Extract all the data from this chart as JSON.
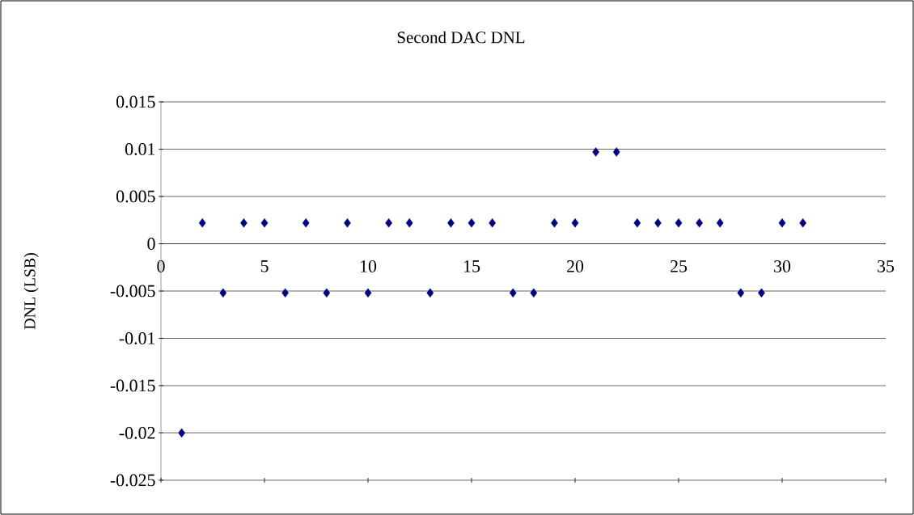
{
  "chart_data": {
    "type": "scatter",
    "title": "Second DAC DNL",
    "ylabel": "DNL (LSB)",
    "x": [
      1,
      2,
      3,
      4,
      5,
      6,
      7,
      8,
      9,
      10,
      11,
      12,
      13,
      14,
      15,
      16,
      17,
      18,
      19,
      20,
      21,
      22,
      23,
      24,
      25,
      26,
      27,
      28,
      29,
      30,
      31
    ],
    "series": [
      {
        "color": "#000080",
        "values": [
          -0.02,
          0.0022,
          -0.0052,
          0.0022,
          0.0022,
          -0.0052,
          0.0022,
          -0.0052,
          0.0022,
          -0.0052,
          0.0022,
          0.0022,
          -0.0052,
          0.0022,
          0.0022,
          0.0022,
          -0.0052,
          -0.0052,
          0.0022,
          0.0022,
          0.0097,
          0.0097,
          0.0022,
          0.0022,
          0.0022,
          0.0022,
          0.0022,
          -0.0052,
          -0.0052,
          0.0022,
          0.0022
        ]
      }
    ],
    "xlim": [
      0,
      35
    ],
    "xticks": [
      0,
      5,
      10,
      15,
      20,
      25,
      30,
      35
    ],
    "ylim": [
      -0.025,
      0.015
    ],
    "yticks": [
      -0.025,
      -0.02,
      -0.015,
      -0.01,
      -0.005,
      0,
      0.005,
      0.01,
      0.015
    ],
    "grid": "y",
    "marker": "diamond"
  }
}
